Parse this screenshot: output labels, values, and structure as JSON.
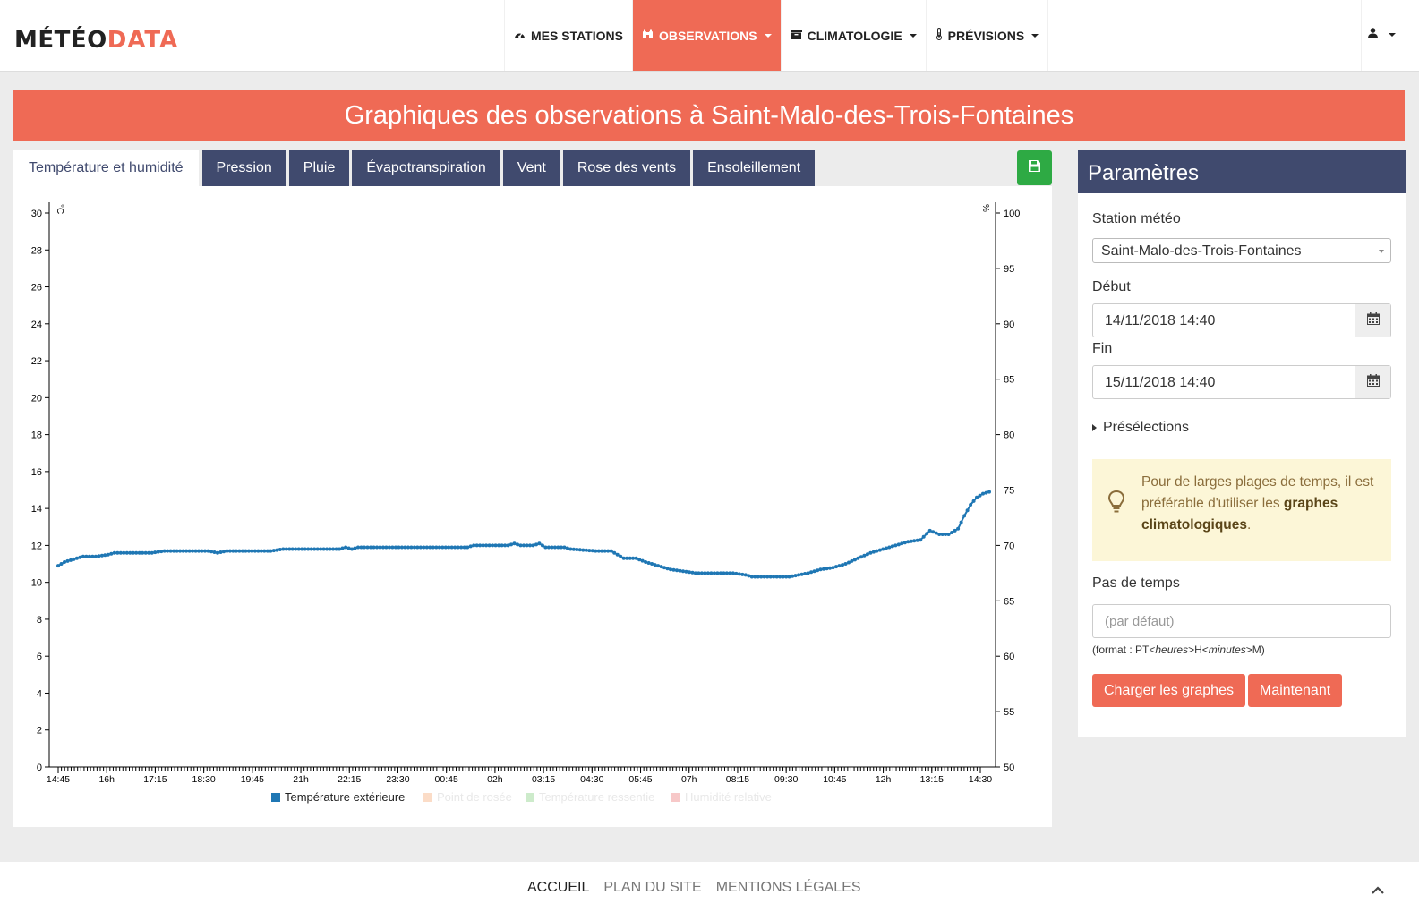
{
  "brand": {
    "part1": "MÉTÉO",
    "part2": "DATA"
  },
  "nav": {
    "items": [
      {
        "label": "MES STATIONS",
        "icon": "dashboard-icon",
        "glyph": "◉",
        "active": false,
        "dropdown": false
      },
      {
        "label": "OBSERVATIONS",
        "icon": "binoculars-icon",
        "glyph": "♜",
        "active": true,
        "dropdown": true
      },
      {
        "label": "CLIMATOLOGIE",
        "icon": "archive-icon",
        "glyph": "▬",
        "active": false,
        "dropdown": true
      },
      {
        "label": "PRÉVISIONS",
        "icon": "thermometer-icon",
        "glyph": "🌡",
        "active": false,
        "dropdown": true
      }
    ],
    "user_icon": "user-icon"
  },
  "page_title": "Graphiques des observations à Saint-Malo-des-Trois-Fontaines",
  "tabs": [
    {
      "label": "Température et humidité",
      "active": true
    },
    {
      "label": "Pression",
      "active": false
    },
    {
      "label": "Pluie",
      "active": false
    },
    {
      "label": "Évapotranspiration",
      "active": false
    },
    {
      "label": "Vent",
      "active": false
    },
    {
      "label": "Rose des vents",
      "active": false
    },
    {
      "label": "Ensoleillement",
      "active": false
    }
  ],
  "save_icon": "floppy-disk-icon",
  "chart_data": {
    "type": "line",
    "title": "",
    "left_axis": {
      "label": "°C",
      "range": [
        0,
        30
      ],
      "ticks": [
        0,
        2,
        4,
        6,
        8,
        10,
        12,
        14,
        16,
        18,
        20,
        22,
        24,
        26,
        28,
        30
      ]
    },
    "right_axis": {
      "label": "%",
      "range": [
        50,
        100
      ],
      "ticks": [
        50,
        55,
        60,
        65,
        70,
        75,
        80,
        85,
        90,
        95,
        100
      ]
    },
    "x_range": [
      0,
      1430
    ],
    "x_ticks": [
      {
        "t": 5,
        "label": "14:45"
      },
      {
        "t": 80,
        "label": "16h"
      },
      {
        "t": 155,
        "label": "17:15"
      },
      {
        "t": 230,
        "label": "18:30"
      },
      {
        "t": 305,
        "label": "19:45"
      },
      {
        "t": 380,
        "label": "21h"
      },
      {
        "t": 455,
        "label": "22:15"
      },
      {
        "t": 530,
        "label": "23:30"
      },
      {
        "t": 605,
        "label": "00:45"
      },
      {
        "t": 680,
        "label": "02h"
      },
      {
        "t": 755,
        "label": "03:15"
      },
      {
        "t": 830,
        "label": "04:30"
      },
      {
        "t": 905,
        "label": "05:45"
      },
      {
        "t": 980,
        "label": "07h"
      },
      {
        "t": 1055,
        "label": "08:15"
      },
      {
        "t": 1130,
        "label": "09:30"
      },
      {
        "t": 1205,
        "label": "10:45"
      },
      {
        "t": 1280,
        "label": "12h"
      },
      {
        "t": 1355,
        "label": "13:15"
      },
      {
        "t": 1430,
        "label": "14:30"
      }
    ],
    "minor_tick_interval": 5,
    "series": [
      {
        "name": "Température extérieure",
        "color": "#1f77b4",
        "visible": true,
        "points": [
          [
            0,
            10.9
          ],
          [
            10,
            11.1
          ],
          [
            20,
            11.2
          ],
          [
            30,
            11.3
          ],
          [
            40,
            11.4
          ],
          [
            60,
            11.4
          ],
          [
            80,
            11.5
          ],
          [
            90,
            11.6
          ],
          [
            150,
            11.6
          ],
          [
            170,
            11.7
          ],
          [
            240,
            11.7
          ],
          [
            255,
            11.6
          ],
          [
            270,
            11.7
          ],
          [
            340,
            11.7
          ],
          [
            360,
            11.8
          ],
          [
            450,
            11.8
          ],
          [
            460,
            11.9
          ],
          [
            470,
            11.8
          ],
          [
            480,
            11.9
          ],
          [
            600,
            11.9
          ],
          [
            655,
            11.9
          ],
          [
            665,
            12.0
          ],
          [
            720,
            12.0
          ],
          [
            730,
            12.1
          ],
          [
            740,
            12.0
          ],
          [
            760,
            12.0
          ],
          [
            770,
            12.1
          ],
          [
            780,
            11.9
          ],
          [
            810,
            11.9
          ],
          [
            820,
            11.8
          ],
          [
            860,
            11.7
          ],
          [
            885,
            11.7
          ],
          [
            895,
            11.5
          ],
          [
            905,
            11.3
          ],
          [
            925,
            11.3
          ],
          [
            940,
            11.1
          ],
          [
            960,
            10.9
          ],
          [
            980,
            10.7
          ],
          [
            1000,
            10.6
          ],
          [
            1020,
            10.5
          ],
          [
            1080,
            10.5
          ],
          [
            1100,
            10.4
          ],
          [
            1110,
            10.3
          ],
          [
            1170,
            10.3
          ],
          [
            1185,
            10.4
          ],
          [
            1200,
            10.5
          ],
          [
            1220,
            10.7
          ],
          [
            1240,
            10.8
          ],
          [
            1260,
            11.0
          ],
          [
            1280,
            11.3
          ],
          [
            1300,
            11.6
          ],
          [
            1320,
            11.8
          ],
          [
            1340,
            12.0
          ],
          [
            1360,
            12.2
          ],
          [
            1380,
            12.3
          ],
          [
            1395,
            12.8
          ],
          [
            1410,
            12.6
          ],
          [
            1425,
            12.6
          ],
          [
            1440,
            12.9
          ],
          [
            1450,
            13.6
          ],
          [
            1460,
            14.2
          ],
          [
            1470,
            14.6
          ],
          [
            1480,
            14.8
          ],
          [
            1490,
            14.9
          ]
        ]
      },
      {
        "name": "Point de rosée",
        "color": "#fbdcc7",
        "visible": false
      },
      {
        "name": "Température ressentie",
        "color": "#cdebcb",
        "visible": false
      },
      {
        "name": "Humidité relative",
        "color": "#f7c8c8",
        "visible": false
      }
    ],
    "grid": false,
    "legend_position": "bottom-center"
  },
  "params": {
    "title": "Paramètres",
    "station_label": "Station météo",
    "station_value": "Saint-Malo-des-Trois-Fontaines",
    "start_label": "Début",
    "start_value": "14/11/2018 14:40",
    "end_label": "Fin",
    "end_value": "15/11/2018 14:40",
    "calendar_icon": "calendar-icon",
    "preselections_label": "Présélections",
    "alert": {
      "icon": "lightbulb-icon",
      "text_before": "Pour de larges plages de temps, il est préférable d'utiliser les ",
      "text_bold": "graphes climatologiques",
      "text_after": "."
    },
    "step_label": "Pas de temps",
    "step_placeholder": "(par défaut)",
    "hint_prefix": "(format : PT<",
    "hint_hours": "heures",
    "hint_mid": ">H<",
    "hint_minutes": "minutes",
    "hint_suffix": ">M)",
    "load_button": "Charger les graphes",
    "now_button": "Maintenant"
  },
  "footer": {
    "links": [
      "ACCUEIL",
      "PLAN DU SITE",
      "MENTIONS LÉGALES"
    ],
    "back_to_top_icon": "chevron-up-icon"
  }
}
